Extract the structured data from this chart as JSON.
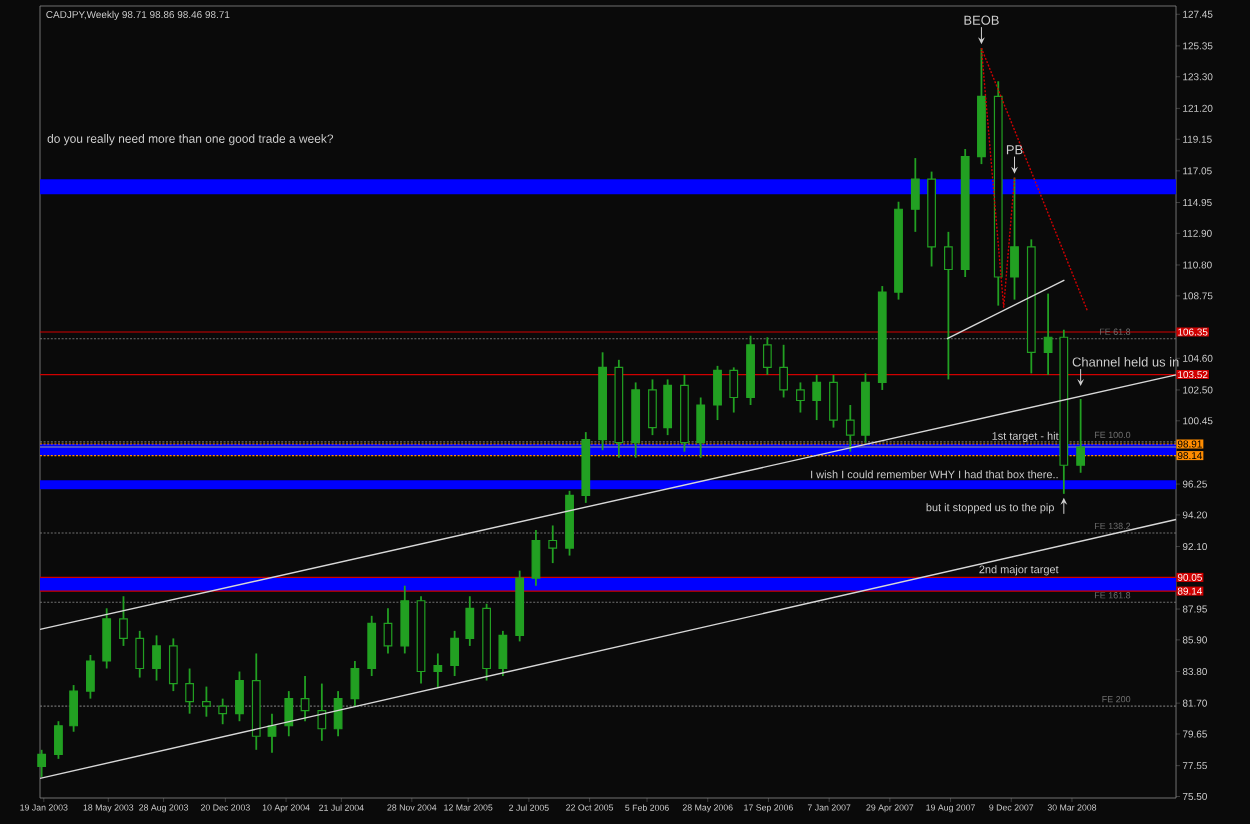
{
  "chart_data": {
    "type": "candlestick",
    "title": "CADJPY,Weekly  98.71 98.86 98.46 98.71",
    "color": "#22a022",
    "x": [
      "2003-01-15",
      "2003-02-15",
      "2003-03-15",
      "2003-04-15",
      "2003-05-15",
      "2003-06-15",
      "2003-07-15",
      "2003-08-15",
      "2003-09-15",
      "2003-10-15",
      "2003-11-15",
      "2003-12-15",
      "2004-01-15",
      "2004-02-15",
      "2004-03-15",
      "2004-04-15",
      "2004-05-15",
      "2004-06-15",
      "2004-07-15",
      "2004-08-15",
      "2004-09-15",
      "2004-10-15",
      "2004-11-15",
      "2004-12-15",
      "2005-01-15",
      "2005-02-15",
      "2005-03-15",
      "2005-04-15",
      "2005-05-15",
      "2005-06-15",
      "2005-07-15",
      "2005-08-15",
      "2005-09-15",
      "2005-10-15",
      "2005-11-15",
      "2005-12-15",
      "2006-01-15",
      "2006-02-15",
      "2006-03-15",
      "2006-04-15",
      "2006-05-15",
      "2006-06-15",
      "2006-07-15",
      "2006-08-15",
      "2006-09-15",
      "2006-10-15",
      "2006-11-15",
      "2006-12-15",
      "2007-01-15",
      "2007-02-15",
      "2007-03-15",
      "2007-04-15",
      "2007-05-15",
      "2007-06-15",
      "2007-07-15",
      "2007-08-15",
      "2007-09-15",
      "2007-10-15",
      "2007-11-15",
      "2007-12-15",
      "2008-01-15",
      "2008-02-15",
      "2008-03-15",
      "2008-04-15"
    ],
    "ohlc": [
      [
        77.5,
        78.6,
        76.8,
        78.3
      ],
      [
        78.3,
        80.5,
        78.0,
        80.2
      ],
      [
        80.2,
        82.9,
        79.8,
        82.5
      ],
      [
        82.5,
        84.9,
        82.0,
        84.5
      ],
      [
        84.5,
        88.0,
        84.0,
        87.3
      ],
      [
        87.3,
        88.8,
        85.5,
        86.0
      ],
      [
        86.0,
        86.5,
        83.4,
        84.0
      ],
      [
        84.0,
        86.2,
        83.2,
        85.5
      ],
      [
        85.5,
        86.0,
        82.5,
        83.0
      ],
      [
        83.0,
        84.0,
        81.0,
        81.8
      ],
      [
        81.8,
        82.8,
        80.8,
        81.5
      ],
      [
        81.5,
        82.0,
        80.3,
        81.0
      ],
      [
        81.0,
        83.8,
        80.5,
        83.2
      ],
      [
        83.2,
        85.0,
        78.6,
        79.5
      ],
      [
        79.5,
        81.0,
        78.4,
        80.2
      ],
      [
        80.2,
        82.5,
        79.5,
        82.0
      ],
      [
        82.0,
        83.5,
        80.5,
        81.2
      ],
      [
        81.2,
        83.0,
        79.2,
        80.0
      ],
      [
        80.0,
        82.5,
        79.5,
        82.0
      ],
      [
        82.0,
        84.5,
        81.5,
        84.0
      ],
      [
        84.0,
        87.5,
        83.5,
        87.0
      ],
      [
        87.0,
        88.0,
        85.0,
        85.5
      ],
      [
        85.5,
        89.5,
        85.0,
        88.5
      ],
      [
        88.5,
        88.8,
        83.0,
        83.8
      ],
      [
        83.8,
        85.0,
        82.7,
        84.2
      ],
      [
        84.2,
        86.5,
        83.5,
        86.0
      ],
      [
        86.0,
        88.8,
        85.5,
        88.0
      ],
      [
        88.0,
        88.3,
        83.2,
        84.0
      ],
      [
        84.0,
        86.5,
        83.5,
        86.2
      ],
      [
        86.2,
        90.5,
        85.8,
        90.0
      ],
      [
        90.0,
        93.2,
        89.5,
        92.5
      ],
      [
        92.5,
        93.5,
        91.0,
        92.0
      ],
      [
        92.0,
        95.8,
        91.5,
        95.5
      ],
      [
        95.5,
        99.7,
        95.0,
        99.2
      ],
      [
        99.2,
        105.0,
        98.5,
        104.0
      ],
      [
        104.0,
        104.5,
        98.0,
        99.0
      ],
      [
        99.0,
        103.0,
        98.0,
        102.5
      ],
      [
        102.5,
        103.2,
        99.5,
        100.0
      ],
      [
        100.0,
        103.2,
        99.5,
        102.8
      ],
      [
        102.8,
        103.5,
        98.4,
        99.0
      ],
      [
        99.0,
        102.0,
        98.0,
        101.5
      ],
      [
        101.5,
        104.1,
        100.5,
        103.8
      ],
      [
        103.8,
        104.0,
        101.0,
        102.0
      ],
      [
        102.0,
        106.1,
        101.5,
        105.5
      ],
      [
        105.5,
        106.0,
        103.5,
        104.0
      ],
      [
        104.0,
        105.5,
        102.0,
        102.5
      ],
      [
        102.5,
        103.0,
        101.0,
        101.8
      ],
      [
        101.8,
        103.5,
        100.5,
        103.0
      ],
      [
        103.0,
        103.5,
        100.0,
        100.5
      ],
      [
        100.5,
        101.5,
        98.4,
        99.5
      ],
      [
        99.5,
        103.6,
        99.0,
        103.0
      ],
      [
        103.0,
        109.4,
        102.5,
        109.0
      ],
      [
        109.0,
        115.0,
        108.5,
        114.5
      ],
      [
        114.5,
        117.9,
        113.0,
        116.5
      ],
      [
        116.5,
        117.0,
        110.7,
        112.0
      ],
      [
        112.0,
        113.0,
        103.2,
        110.5
      ],
      [
        110.5,
        118.5,
        110.0,
        118.0
      ],
      [
        118.0,
        125.2,
        117.5,
        122.0
      ],
      [
        122.0,
        123.0,
        108.1,
        110.0
      ],
      [
        110.0,
        116.6,
        108.5,
        112.0
      ],
      [
        112.0,
        112.5,
        103.6,
        105.0
      ],
      [
        105.0,
        108.9,
        103.5,
        106.0
      ],
      [
        106.0,
        106.5,
        95.6,
        97.5
      ],
      [
        97.5,
        101.9,
        97.0,
        98.71
      ]
    ],
    "series": [
      {
        "type": "line",
        "color": "#d8d8d8",
        "x": [
          "2003-01-12",
          "2008-10-08"
        ],
        "values": [
          86.6,
          103.5
        ]
      },
      {
        "type": "line",
        "color": "#d8d8d8",
        "x": [
          "2003-01-12",
          "2008-10-08"
        ],
        "values": [
          76.7,
          93.9
        ]
      },
      {
        "type": "line",
        "color": "#d8d8d8",
        "x": [
          "2007-08-12",
          "2008-03-16"
        ],
        "values": [
          105.9,
          109.8
        ]
      },
      {
        "type": "line",
        "color": "#d00000",
        "line_style": "dotted",
        "x": [
          "2007-10-15",
          "2007-11-25",
          "2007-12-15"
        ],
        "values": [
          125.2,
          108.0,
          116.6
        ]
      },
      {
        "type": "line",
        "color": "#d00000",
        "line_style": "dotted",
        "x": [
          "2007-10-15",
          "2008-04-27"
        ],
        "values": [
          125.2,
          107.8
        ]
      }
    ],
    "bands": [
      {
        "axis": "y",
        "from": 89.14,
        "to": 90.05,
        "label": "2nd major target",
        "color": "#0000ff"
      },
      {
        "axis": "y",
        "from": 98.14,
        "to": 98.91,
        "label": "1st target - hit",
        "color": "#0000ff"
      },
      {
        "axis": "y",
        "from": 115.5,
        "to": 116.5,
        "color": "#0000ff"
      },
      {
        "axis": "y",
        "from": 95.9,
        "to": 96.5,
        "label": "I wish I could remember WHY I had that box there..",
        "color": "#0000ff"
      }
    ],
    "ref_lines": [
      {
        "axis": "y",
        "value": 106.35,
        "label": "106.35",
        "color": "#d00000"
      },
      {
        "axis": "y",
        "value": 103.52,
        "label": "103.52",
        "color": "#d00000"
      },
      {
        "axis": "y",
        "value": 98.91,
        "label": "98.91",
        "color": "#ff8c00",
        "line_style": "dotted"
      },
      {
        "axis": "y",
        "value": 98.71,
        "color": "#9a9a9a"
      },
      {
        "axis": "y",
        "value": 98.14,
        "label": "98.14",
        "color": "#ff8c00",
        "line_style": "dotted"
      },
      {
        "axis": "y",
        "value": 90.05,
        "label": "90.05",
        "color": "#d00000"
      },
      {
        "axis": "y",
        "value": 89.14,
        "label": "89.14",
        "color": "#d00000"
      },
      {
        "axis": "y",
        "value": 105.9,
        "label": "FE 61.8",
        "color": "#707070",
        "line_style": "dotted"
      },
      {
        "axis": "y",
        "value": 99.05,
        "label": "FE 100.0",
        "color": "#707070",
        "line_style": "dotted"
      },
      {
        "axis": "y",
        "value": 93.0,
        "label": "FE 138.2",
        "color": "#707070",
        "line_style": "dotted"
      },
      {
        "axis": "y",
        "value": 88.4,
        "label": "FE 161.8",
        "color": "#707070",
        "line_style": "dotted"
      },
      {
        "axis": "y",
        "value": 81.5,
        "label": "FE 200",
        "color": "#707070",
        "line_style": "dotted"
      }
    ],
    "annotations": [
      "do you really need more than one good trade a week?",
      {
        "text": "BEOB",
        "x": "2007-10-15",
        "y": 125.2
      },
      {
        "text": "PB",
        "x": "2007-12-15",
        "y": 116.6
      },
      {
        "text": "Channel held us in",
        "x": "2008-04-15",
        "y": 102.5
      },
      {
        "text": "but it stopped us to the pip",
        "x": "2008-03-15",
        "y": 95.6
      }
    ],
    "xlim": [
      "2003-01-12",
      "2008-10-08"
    ],
    "ylim": [
      75.4,
      128.0
    ],
    "xticks": [
      {
        "value": "2003-01-19",
        "label": "19 Jan 2003"
      },
      {
        "value": "2003-05-18",
        "label": "18 May 2003"
      },
      {
        "value": "2003-08-28",
        "label": "28 Aug 2003"
      },
      {
        "value": "2003-12-20",
        "label": "20 Dec 2003"
      },
      {
        "value": "2004-04-10",
        "label": "10 Apr 2004"
      },
      {
        "value": "2004-07-21",
        "label": "21 Jul 2004"
      },
      {
        "value": "2004-11-28",
        "label": "28 Nov 2004"
      },
      {
        "value": "2005-03-12",
        "label": "12 Mar 2005"
      },
      {
        "value": "2005-07-02",
        "label": "2 Jul 2005"
      },
      {
        "value": "2005-10-22",
        "label": "22 Oct 2005"
      },
      {
        "value": "2006-02-05",
        "label": "5 Feb 2006"
      },
      {
        "value": "2006-05-28",
        "label": "28 May 2006"
      },
      {
        "value": "2006-09-17",
        "label": "17 Sep 2006"
      },
      {
        "value": "2007-01-07",
        "label": "7 Jan 2007"
      },
      {
        "value": "2007-04-29",
        "label": "29 Apr 2007"
      },
      {
        "value": "2007-08-19",
        "label": "19 Aug 2007"
      },
      {
        "value": "2007-12-09",
        "label": "9 Dec 2007"
      },
      {
        "value": "2008-03-30",
        "label": "30 Mar 2008"
      }
    ],
    "yticks": [
      127.45,
      125.35,
      {
        "value": 123.3,
        "label": "123.30"
      },
      {
        "value": 121.2,
        "label": "121.20"
      },
      119.15,
      117.05,
      114.95,
      {
        "value": 112.9,
        "label": "112.90"
      },
      {
        "value": 110.8,
        "label": "110.80"
      },
      108.75,
      {
        "value": 104.6,
        "label": "104.60"
      },
      {
        "value": 102.5,
        "label": "102.50"
      },
      100.45,
      96.25,
      {
        "value": 94.2,
        "label": "94.20"
      },
      {
        "value": 92.1,
        "label": "92.10"
      },
      87.95,
      {
        "value": 85.9,
        "label": "85.90"
      },
      {
        "value": 83.8,
        "label": "83.80"
      },
      {
        "value": 81.7,
        "label": "81.70"
      },
      79.65,
      77.55,
      {
        "value": 75.5,
        "label": "75.50"
      }
    ]
  }
}
